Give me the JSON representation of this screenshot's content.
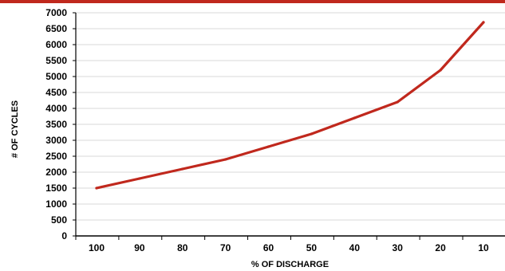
{
  "chart_data": {
    "type": "line",
    "xlabel": "% OF DISCHARGE",
    "ylabel": "# OF CYCLES",
    "categories": [
      "100",
      "90",
      "80",
      "70",
      "60",
      "50",
      "40",
      "30",
      "20",
      "10"
    ],
    "series": [
      {
        "values": [
          1500,
          1800,
          2100,
          2400,
          2800,
          3200,
          3700,
          4200,
          5200,
          6700
        ]
      }
    ],
    "yticks": [
      "0",
      "500",
      "1000",
      "1500",
      "2000",
      "2500",
      "3000",
      "3500",
      "4000",
      "4500",
      "5000",
      "5500",
      "6000",
      "6500",
      "7000"
    ],
    "ylim": [
      0,
      7000
    ],
    "grid": true,
    "legend": "none"
  },
  "colors": {
    "line": "#c0281d",
    "top_bar": "#c0281d",
    "grid": "#d9d9d9",
    "axis": "#000000"
  }
}
